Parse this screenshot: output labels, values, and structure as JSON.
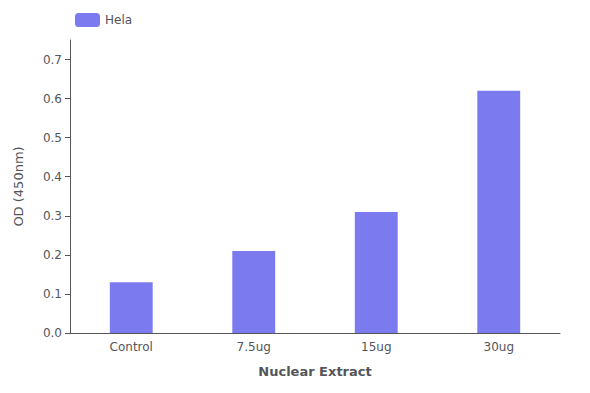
{
  "chart_data": {
    "type": "bar",
    "categories": [
      "Control",
      "7.5ug",
      "15ug",
      "30ug"
    ],
    "series": [
      {
        "name": "Hela",
        "color": "#7b7bef",
        "values": [
          0.13,
          0.21,
          0.31,
          0.62
        ]
      }
    ],
    "xlabel": "Nuclear Extract",
    "ylabel": "OD (450nm)",
    "ylim": [
      0,
      0.75
    ],
    "yticks": [
      {
        "value": 0,
        "label": "0.0"
      },
      0.1,
      0.2,
      0.3,
      0.4,
      0.5,
      0.6,
      0.7
    ],
    "grid": false,
    "legend": "upper left"
  }
}
